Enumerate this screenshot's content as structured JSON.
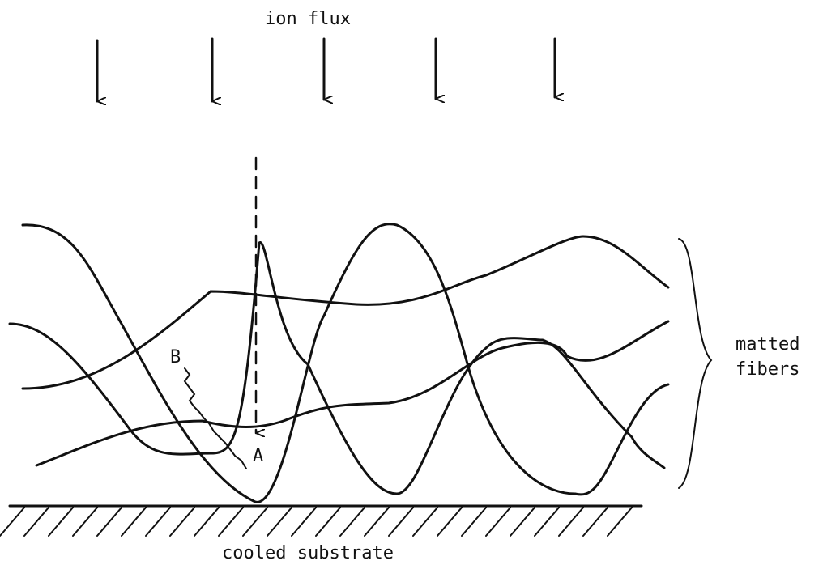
{
  "labels": {
    "top": "ion flux",
    "bottom": "cooled substrate",
    "side": [
      "matted",
      "fibers"
    ],
    "point_a": "A",
    "point_b": "B"
  }
}
